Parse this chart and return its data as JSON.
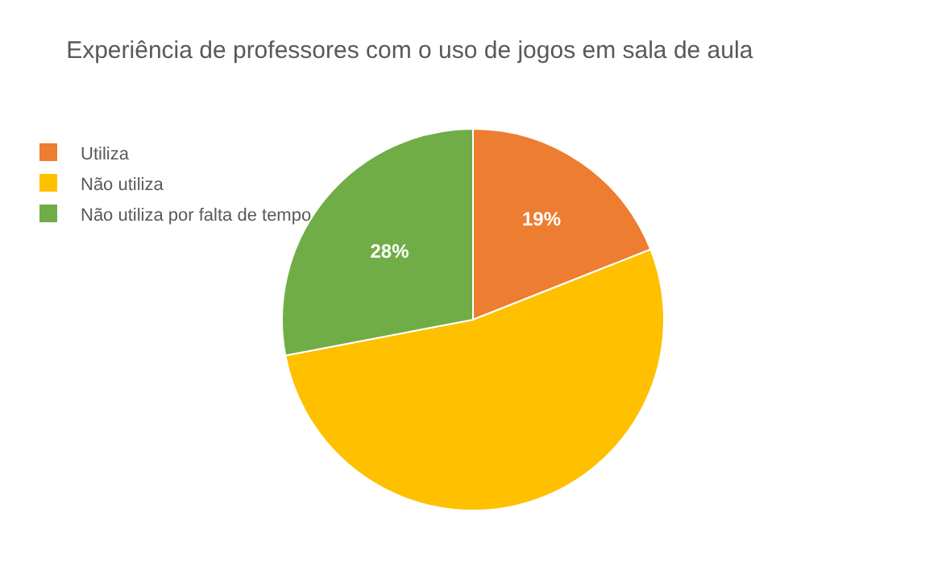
{
  "chart_data": {
    "type": "pie",
    "title": "Experiência de professores com o uso de jogos em sala de aula",
    "categories": [
      "Utiliza",
      "Não utiliza",
      "Não utiliza por falta de tempo"
    ],
    "values": [
      19,
      53,
      28
    ],
    "colors": [
      "#ed7d31",
      "#ffc000",
      "#70ad47"
    ],
    "value_labels": [
      "19%",
      null,
      "28%"
    ],
    "legend": "top left"
  }
}
